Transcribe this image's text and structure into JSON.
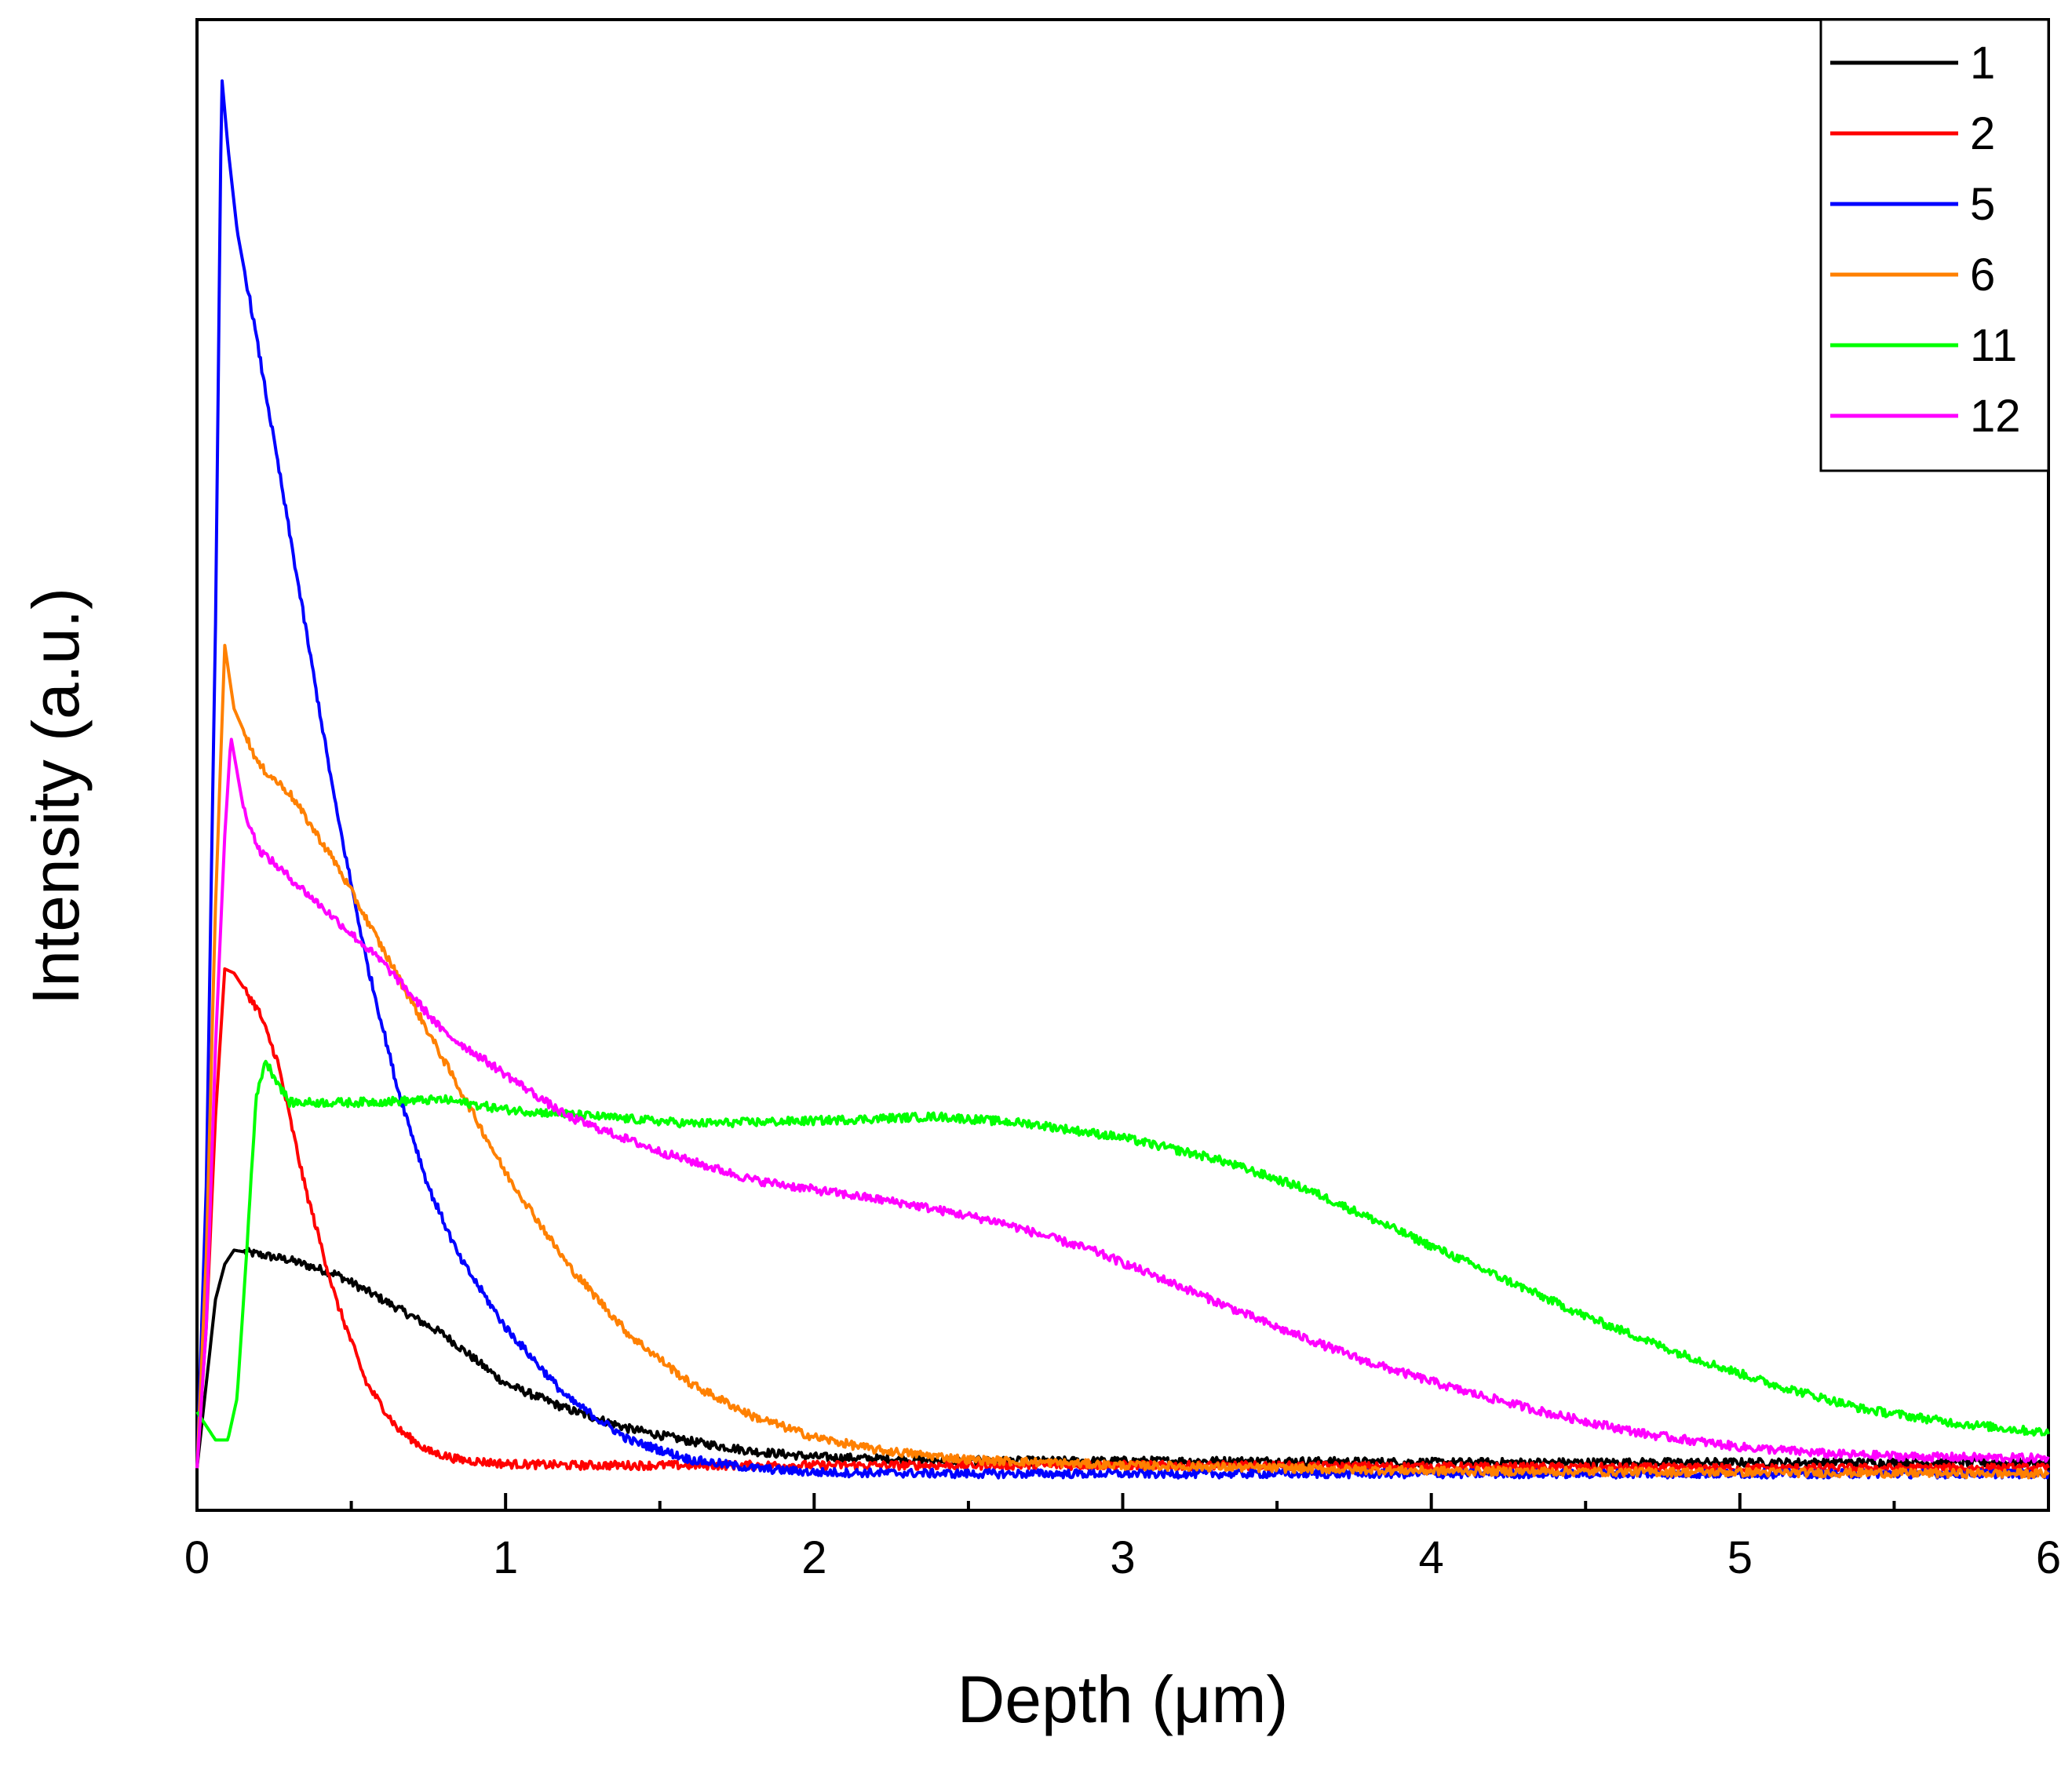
{
  "chart_data": {
    "type": "line",
    "title": "",
    "xlabel": "Depth (μm)",
    "ylabel": "Intensity (a.u.)",
    "xlim": [
      0,
      6
    ],
    "ylim": [
      -0.03,
      1.03
    ],
    "xticks": [
      "0",
      "1",
      "2",
      "3",
      "4",
      "5",
      "6"
    ],
    "yticks_shown": false,
    "grid": false,
    "legend_position": "top-right",
    "series": [
      {
        "name": "1",
        "color": "#000000",
        "x": [
          0,
          0.03,
          0.06,
          0.09,
          0.12,
          0.2,
          0.3,
          0.45,
          0.6,
          0.8,
          1.0,
          1.2,
          1.4,
          1.6,
          1.8,
          2.0,
          2.3,
          2.6,
          3.0,
          3.5,
          4.0,
          4.5,
          5.0,
          5.5,
          6.0
        ],
        "y": [
          0.0,
          0.06,
          0.12,
          0.145,
          0.155,
          0.152,
          0.148,
          0.138,
          0.12,
          0.095,
          0.06,
          0.042,
          0.028,
          0.019,
          0.012,
          0.008,
          0.006,
          0.005,
          0.005,
          0.005,
          0.004,
          0.004,
          0.004,
          0.004,
          0.004
        ]
      },
      {
        "name": "2",
        "color": "#ff0000",
        "x": [
          0,
          0.03,
          0.06,
          0.09,
          0.12,
          0.2,
          0.26,
          0.35,
          0.45,
          0.55,
          0.65,
          0.75,
          0.85,
          1.0,
          1.2,
          1.5,
          2.0,
          3.0,
          4.0,
          5.0,
          6.0
        ],
        "y": [
          0.0,
          0.1,
          0.25,
          0.355,
          0.352,
          0.325,
          0.29,
          0.2,
          0.12,
          0.06,
          0.028,
          0.012,
          0.006,
          0.003,
          0.002,
          0.002,
          0.002,
          0.002,
          0.001,
          0.0,
          0.0
        ]
      },
      {
        "name": "5",
        "color": "#0000ff",
        "x": [
          0,
          0.03,
          0.06,
          0.08,
          0.1,
          0.13,
          0.18,
          0.25,
          0.35,
          0.45,
          0.55,
          0.65,
          0.75,
          0.85,
          1.0,
          1.2,
          1.4,
          1.6,
          1.8,
          2.0,
          2.5,
          3.0,
          4.0,
          5.0,
          6.0
        ],
        "y": [
          0.0,
          0.2,
          0.6,
          0.99,
          0.94,
          0.88,
          0.82,
          0.73,
          0.6,
          0.47,
          0.36,
          0.27,
          0.2,
          0.15,
          0.1,
          0.05,
          0.02,
          0.006,
          0.0,
          -0.003,
          -0.004,
          -0.004,
          -0.004,
          -0.004,
          -0.004
        ]
      },
      {
        "name": "6",
        "color": "#ff8000",
        "x": [
          0,
          0.03,
          0.06,
          0.09,
          0.12,
          0.2,
          0.3,
          0.45,
          0.6,
          0.8,
          1.0,
          1.2,
          1.4,
          1.6,
          1.8,
          2.0,
          2.2,
          2.5,
          3.0,
          3.5,
          4.0,
          5.0,
          6.0
        ],
        "y": [
          0.0,
          0.15,
          0.4,
          0.585,
          0.54,
          0.5,
          0.48,
          0.43,
          0.37,
          0.29,
          0.21,
          0.145,
          0.095,
          0.06,
          0.037,
          0.022,
          0.013,
          0.006,
          0.002,
          0.0,
          -0.002,
          -0.003,
          -0.004
        ]
      },
      {
        "name": "11",
        "color": "#00ff00",
        "x": [
          0,
          0.03,
          0.06,
          0.1,
          0.13,
          0.16,
          0.19,
          0.22,
          0.3,
          0.5,
          0.8,
          1.0,
          1.3,
          1.6,
          2.0,
          2.4,
          2.7,
          3.0,
          3.3,
          3.6,
          3.9,
          4.2,
          4.5,
          4.8,
          5.1,
          5.4,
          5.7,
          6.0
        ],
        "y": [
          0.04,
          0.03,
          0.02,
          0.02,
          0.05,
          0.15,
          0.26,
          0.29,
          0.26,
          0.26,
          0.262,
          0.255,
          0.25,
          0.245,
          0.247,
          0.25,
          0.245,
          0.235,
          0.22,
          0.198,
          0.168,
          0.138,
          0.108,
          0.082,
          0.06,
          0.042,
          0.032,
          0.025
        ]
      },
      {
        "name": "12",
        "color": "#ff00ff",
        "x": [
          0,
          0.03,
          0.06,
          0.09,
          0.11,
          0.15,
          0.2,
          0.3,
          0.45,
          0.6,
          0.8,
          1.0,
          1.2,
          1.5,
          1.8,
          2.0,
          2.3,
          2.6,
          2.9,
          3.2,
          3.5,
          3.8,
          4.1,
          4.4,
          4.7,
          5.0,
          5.3,
          5.6,
          6.0
        ],
        "y": [
          0.0,
          0.1,
          0.3,
          0.45,
          0.52,
          0.47,
          0.44,
          0.42,
          0.39,
          0.36,
          0.31,
          0.28,
          0.25,
          0.225,
          0.205,
          0.198,
          0.188,
          0.175,
          0.155,
          0.128,
          0.1,
          0.075,
          0.055,
          0.038,
          0.024,
          0.015,
          0.01,
          0.008,
          0.007
        ]
      }
    ]
  }
}
